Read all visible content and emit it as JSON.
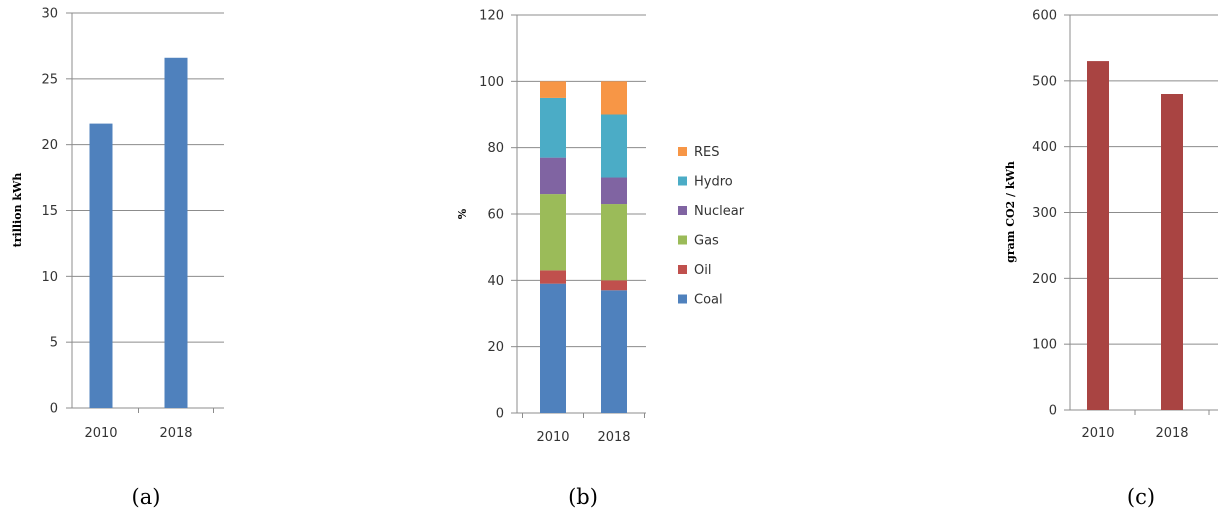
{
  "chart_data": [
    {
      "type": "bar",
      "ylabel": "trillion kWh",
      "categories": [
        "2010",
        "2018"
      ],
      "values": [
        21.6,
        26.6
      ],
      "ylim": [
        0,
        30
      ],
      "yticks": [
        0,
        5,
        10,
        15,
        20,
        25,
        30
      ],
      "color": "#4f81bd",
      "caption": "(a)",
      "grid": true
    },
    {
      "type": "bar",
      "stacked": true,
      "ylabel": "%",
      "categories": [
        "2010",
        "2018"
      ],
      "ylim": [
        0,
        120
      ],
      "yticks": [
        0,
        20,
        40,
        60,
        80,
        100,
        120
      ],
      "series": [
        {
          "name": "Coal",
          "color": "#4f81bd",
          "values": [
            39,
            37
          ]
        },
        {
          "name": "Oil",
          "color": "#c0504d",
          "values": [
            4,
            3
          ]
        },
        {
          "name": "Gas",
          "color": "#9bbb59",
          "values": [
            23,
            23
          ]
        },
        {
          "name": "Nuclear",
          "color": "#8064a2",
          "values": [
            11,
            8
          ]
        },
        {
          "name": "Hydro",
          "color": "#4bacc6",
          "values": [
            18,
            19
          ]
        },
        {
          "name": "RES",
          "color": "#f79646",
          "values": [
            5,
            10
          ]
        }
      ],
      "legend_position": "right",
      "caption": "(b)",
      "grid": true
    },
    {
      "type": "bar",
      "ylabel": "gram CO2 / kWh",
      "categories": [
        "2010",
        "2018"
      ],
      "values": [
        530,
        480
      ],
      "ylim": [
        0,
        600
      ],
      "yticks": [
        0,
        100,
        200,
        300,
        400,
        500,
        600
      ],
      "color": "#a94442",
      "caption": "(c)",
      "grid": true
    }
  ]
}
